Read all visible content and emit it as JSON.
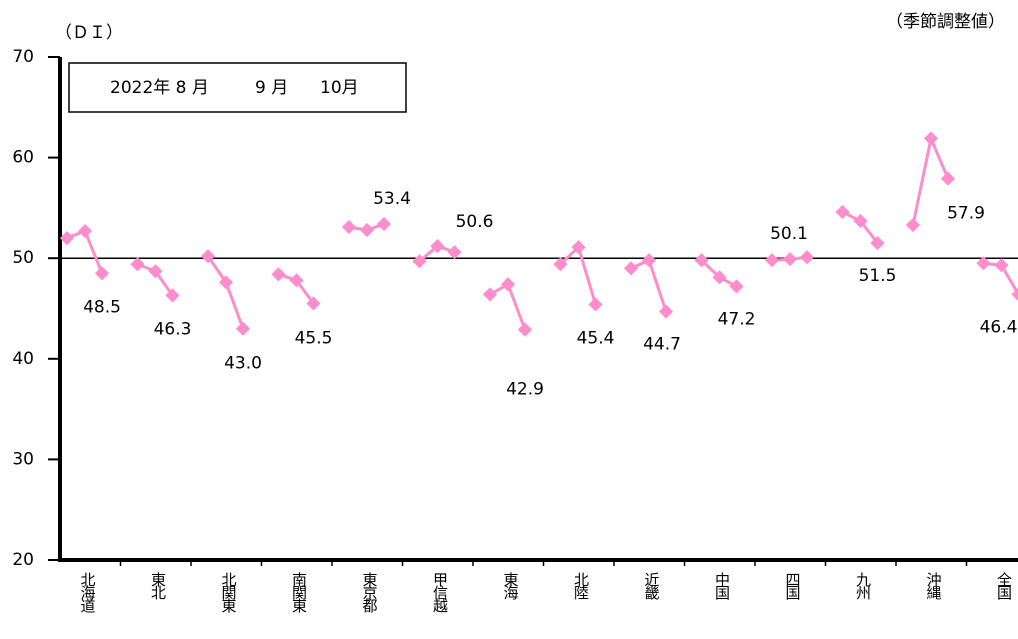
{
  "chart_data": {
    "type": "line",
    "y_label": "（ＤＩ）",
    "subtitle": "（季節調整値）",
    "categories": [
      "北海道",
      "東北",
      "北関東",
      "南関東",
      "東京都",
      "甲信越",
      "東海",
      "北陸",
      "近畿",
      "中国",
      "四国",
      "九州",
      "沖縄",
      "全国"
    ],
    "series": [
      {
        "name": "2022年 8 月",
        "color": "#ff8ccb",
        "values": [
          52.0,
          49.4,
          50.2,
          48.4,
          53.1,
          49.7,
          46.4,
          49.4,
          49.0,
          49.8,
          49.8,
          54.6,
          53.3,
          49.5
        ]
      },
      {
        "name": "9 月",
        "color": "#ff8ccb",
        "values": [
          52.7,
          48.7,
          47.6,
          47.8,
          52.8,
          51.2,
          47.4,
          51.1,
          49.8,
          48.1,
          49.9,
          53.7,
          61.9,
          49.3
        ]
      },
      {
        "name": "10月",
        "color": "#ff8ccb",
        "values": [
          48.5,
          46.3,
          43.0,
          45.5,
          53.4,
          50.6,
          42.9,
          45.4,
          44.7,
          47.2,
          50.1,
          51.5,
          57.9,
          46.4
        ],
        "value_labels": [
          "48.5",
          "46.3",
          "43.0",
          "45.5",
          "53.4",
          "50.6",
          "42.9",
          "45.4",
          "44.7",
          "47.2",
          "50.1",
          "51.5",
          "57.9",
          "46.4"
        ]
      }
    ],
    "ylim": [
      20,
      70
    ],
    "yticks": [
      20,
      30,
      40,
      50,
      60,
      70
    ],
    "reference_line": 50
  }
}
